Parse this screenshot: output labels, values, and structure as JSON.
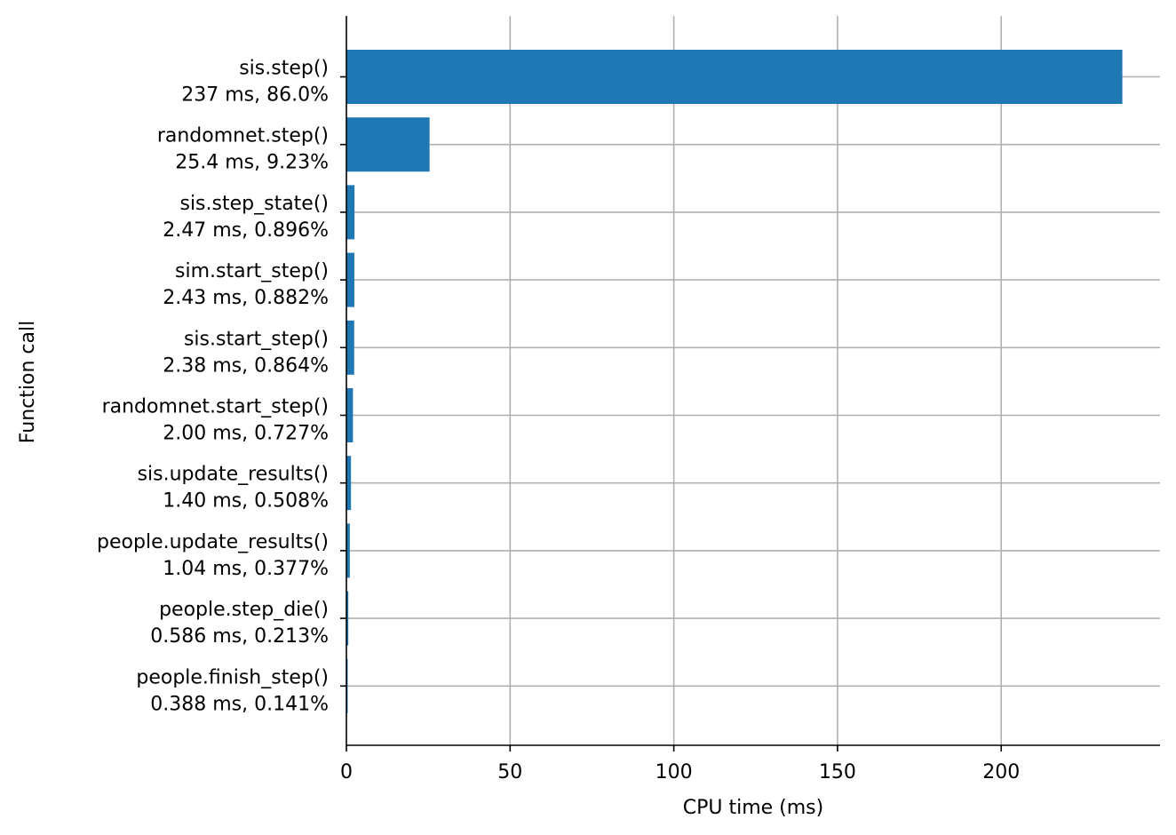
{
  "chart_data": {
    "type": "bar",
    "orientation": "horizontal",
    "xlabel": "CPU time (ms)",
    "ylabel": "Function call",
    "xlim": [
      0,
      248.5
    ],
    "xticks": [
      "0",
      "50",
      "100",
      "150",
      "200"
    ],
    "grid": true,
    "bar_color": "#1f77b4",
    "categories": [
      {
        "name": "sis.step()",
        "label": "237 ms, 86.0%",
        "value": 237
      },
      {
        "name": "randomnet.step()",
        "label": "25.4 ms, 9.23%",
        "value": 25.4
      },
      {
        "name": "sis.step_state()",
        "label": "2.47 ms, 0.896%",
        "value": 2.47
      },
      {
        "name": "sim.start_step()",
        "label": "2.43 ms, 0.882%",
        "value": 2.43
      },
      {
        "name": "sis.start_step()",
        "label": "2.38 ms, 0.864%",
        "value": 2.38
      },
      {
        "name": "randomnet.start_step()",
        "label": "2.00 ms, 0.727%",
        "value": 2.0
      },
      {
        "name": "sis.update_results()",
        "label": "1.40 ms, 0.508%",
        "value": 1.4
      },
      {
        "name": "people.update_results()",
        "label": "1.04 ms, 0.377%",
        "value": 1.04
      },
      {
        "name": "people.step_die()",
        "label": "0.586 ms, 0.213%",
        "value": 0.586
      },
      {
        "name": "people.finish_step()",
        "label": "0.388 ms, 0.141%",
        "value": 0.388
      }
    ]
  }
}
